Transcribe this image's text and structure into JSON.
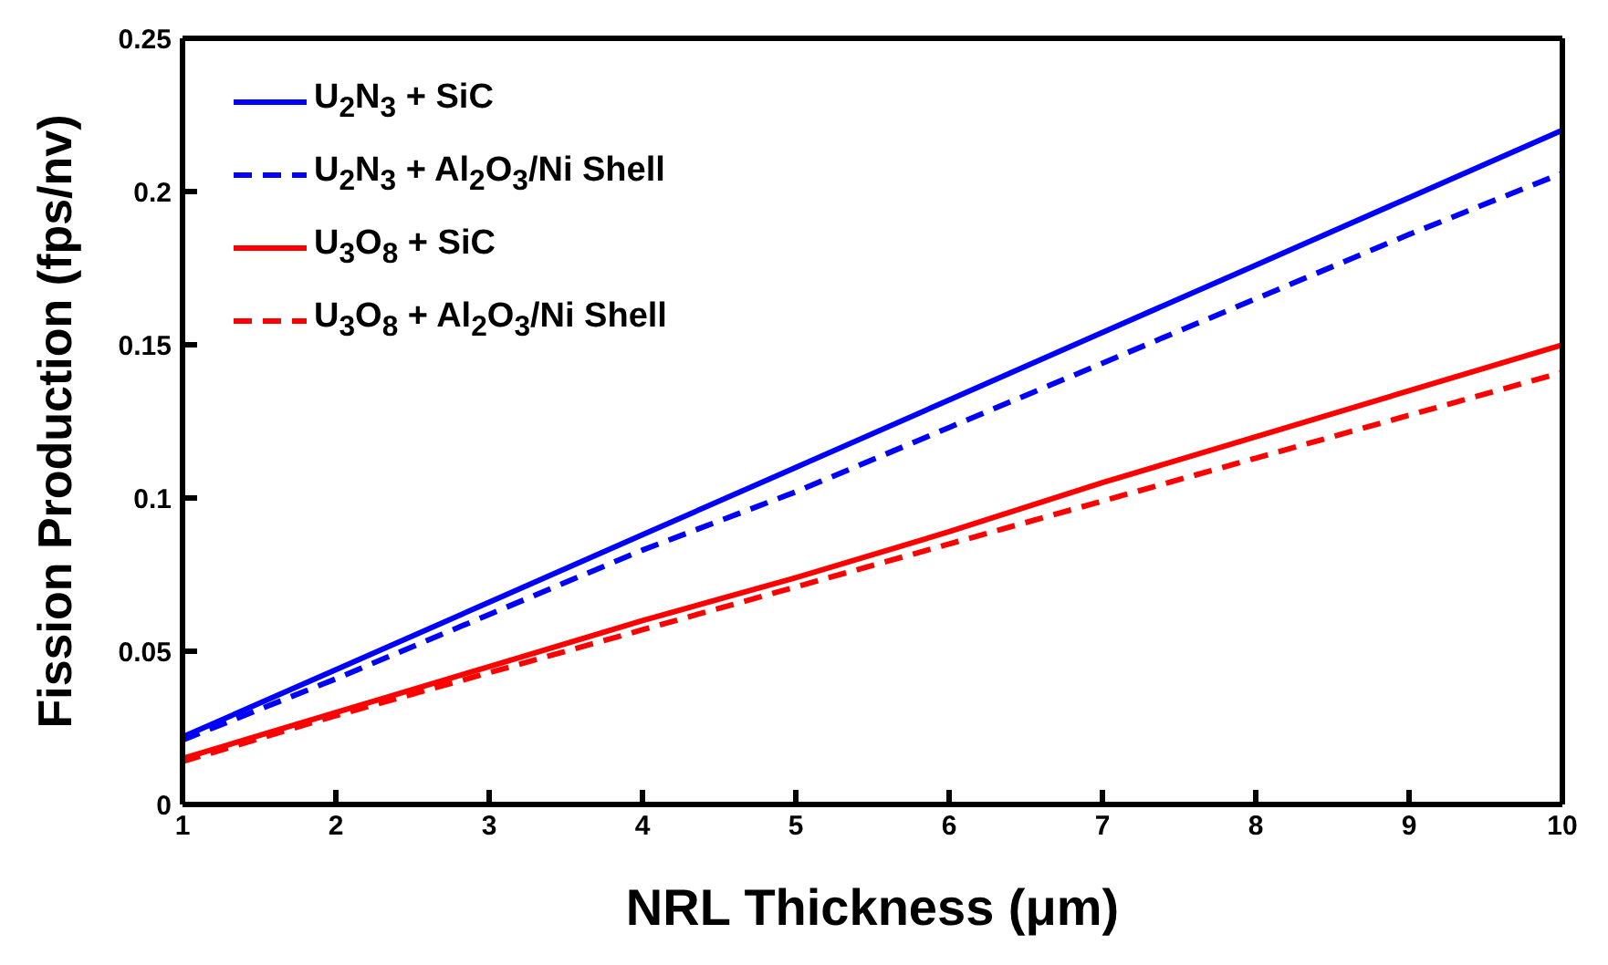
{
  "chart_data": {
    "type": "line",
    "xlabel": "NRL Thickness (μm)",
    "ylabel": "Fission Production (fps/nv)",
    "x": [
      1,
      2,
      3,
      4,
      5,
      6,
      7,
      8,
      9,
      10
    ],
    "series": [
      {
        "name": "U$_{2}$N$_{3}$ + SiC",
        "color": "#0000ff",
        "line_style": "solid",
        "values": [
          0.022,
          0.044,
          0.066,
          0.088,
          0.11,
          0.132,
          0.154,
          0.176,
          0.198,
          0.22
        ]
      },
      {
        "name": "U$_{2}$N$_{3}$ + Al$_{2}$O$_{3}$/Ni Shell",
        "color": "#0000ff",
        "line_style": "dashed",
        "values": [
          0.021,
          0.041,
          0.062,
          0.083,
          0.102,
          0.123,
          0.144,
          0.165,
          0.186,
          0.206
        ]
      },
      {
        "name": "U$_{3}$O$_{8}$ + SiC",
        "color": "#ff0000",
        "line_style": "solid",
        "values": [
          0.015,
          0.03,
          0.045,
          0.06,
          0.074,
          0.089,
          0.105,
          0.12,
          0.135,
          0.15
        ]
      },
      {
        "name": "U$_{3}$O$_{8}$ + Al$_{2}$O$_{3}$/Ni Shell",
        "color": "#ff0000",
        "line_style": "dashed",
        "values": [
          0.014,
          0.029,
          0.043,
          0.057,
          0.071,
          0.085,
          0.099,
          0.113,
          0.127,
          0.141
        ]
      }
    ],
    "xlim": [
      1,
      10
    ],
    "xticks": [
      1,
      2,
      3,
      4,
      5,
      6,
      7,
      8,
      9,
      10
    ],
    "ylim": [
      0,
      0.25
    ],
    "yticks": [
      0,
      0.05,
      0.1,
      0.15,
      0.2,
      0.25
    ],
    "grid": false,
    "legend": "top left",
    "marker": "none"
  }
}
